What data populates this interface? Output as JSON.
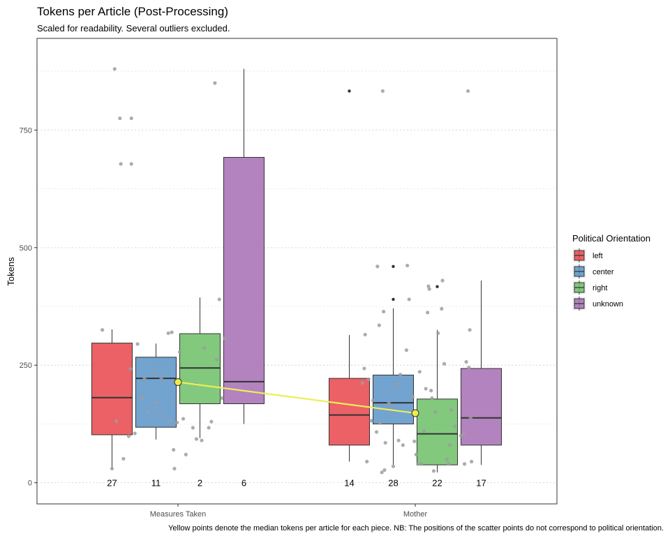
{
  "chart_data": {
    "type": "boxplot",
    "title": "Tokens per Article (Post-Processing)",
    "subtitle": "Scaled for readability. Several outliers excluded.",
    "caption": "Yellow points denote the median tokens per article for each piece. NB: The positions of the scatter points do not correspond to political orientation.",
    "ylabel": "Tokens",
    "xlabel": "",
    "ylim": [
      -45,
      945
    ],
    "yticks": [
      0,
      250,
      500,
      750
    ],
    "grid": true,
    "categories": [
      "Measures Taken",
      "Mother"
    ],
    "legend": {
      "title": "Political Orientation",
      "placement": "right",
      "entries": [
        "left",
        "center",
        "right",
        "unknown"
      ]
    },
    "colors": {
      "left": "#E8454B",
      "center": "#5B93C7",
      "right": "#6CBF66",
      "unknown": "#A46DB3",
      "median_line": "#EDED5A",
      "median_point": "#EDED4A",
      "points": "#9E9E9E"
    },
    "series": [
      {
        "name": "left",
        "boxes": [
          {
            "category": "Measures Taken",
            "whisker_low": 30,
            "q1": 102,
            "median": 181,
            "q3": 297,
            "whisker_high": 326,
            "outliers": [],
            "count": "27"
          },
          {
            "category": "Mother",
            "whisker_low": 45,
            "q1": 80,
            "median": 144,
            "q3": 222,
            "whisker_high": 314,
            "outliers": [
              833
            ],
            "count": "14"
          }
        ]
      },
      {
        "name": "center",
        "boxes": [
          {
            "category": "Measures Taken",
            "whisker_low": 92,
            "q1": 118,
            "median": 222,
            "q3": 267,
            "whisker_high": 296,
            "outliers": [],
            "count": "11"
          },
          {
            "category": "Mother",
            "whisker_low": 38,
            "q1": 125,
            "median": 170,
            "q3": 229,
            "whisker_high": 371,
            "outliers": [
              390,
              460
            ],
            "count": "28"
          }
        ]
      },
      {
        "name": "right",
        "boxes": [
          {
            "category": "Measures Taken",
            "whisker_low": 95,
            "q1": 168,
            "median": 244,
            "q3": 317,
            "whisker_high": 394,
            "outliers": [],
            "count": "2"
          },
          {
            "category": "Mother",
            "whisker_low": 22,
            "q1": 38,
            "median": 104,
            "q3": 178,
            "whisker_high": 325,
            "outliers": [
              417
            ],
            "count": "22"
          }
        ]
      },
      {
        "name": "unknown",
        "boxes": [
          {
            "category": "Measures Taken",
            "whisker_low": 125,
            "q1": 168,
            "median": 215,
            "q3": 692,
            "whisker_high": 880,
            "outliers": [],
            "count": "6"
          },
          {
            "category": "Mother",
            "whisker_low": 38,
            "q1": 80,
            "median": 138,
            "q3": 243,
            "whisker_high": 430,
            "outliers": [],
            "count": "17"
          }
        ]
      }
    ],
    "median_trend": [
      {
        "category": "Measures Taken",
        "value": 214
      },
      {
        "category": "Mother",
        "value": 148
      }
    ],
    "scatter_points": [
      {
        "category": "Measures Taken",
        "x_offset": -0.86,
        "y": 325
      },
      {
        "category": "Measures Taken",
        "x_offset": -0.75,
        "y": 30
      },
      {
        "category": "Measures Taken",
        "x_offset": -0.72,
        "y": 880
      },
      {
        "category": "Measures Taken",
        "x_offset": -0.66,
        "y": 775
      },
      {
        "category": "Measures Taken",
        "x_offset": -0.65,
        "y": 678
      },
      {
        "category": "Measures Taken",
        "x_offset": -0.62,
        "y": 51
      },
      {
        "category": "Measures Taken",
        "x_offset": -0.7,
        "y": 131
      },
      {
        "category": "Measures Taken",
        "x_offset": -0.56,
        "y": 99
      },
      {
        "category": "Measures Taken",
        "x_offset": -0.53,
        "y": 775
      },
      {
        "category": "Measures Taken",
        "x_offset": -0.53,
        "y": 678
      },
      {
        "category": "Measures Taken",
        "x_offset": -0.54,
        "y": 242
      },
      {
        "category": "Measures Taken",
        "x_offset": -0.49,
        "y": 105
      },
      {
        "category": "Measures Taken",
        "x_offset": -0.46,
        "y": 295
      },
      {
        "category": "Measures Taken",
        "x_offset": -0.41,
        "y": 180
      },
      {
        "category": "Measures Taken",
        "x_offset": -0.38,
        "y": 222
      },
      {
        "category": "Measures Taken",
        "x_offset": -0.33,
        "y": 152
      },
      {
        "category": "Measures Taken",
        "x_offset": -0.27,
        "y": 233
      },
      {
        "category": "Measures Taken",
        "x_offset": -0.24,
        "y": 170
      },
      {
        "category": "Measures Taken",
        "x_offset": -0.2,
        "y": 142
      },
      {
        "category": "Measures Taken",
        "x_offset": -0.19,
        "y": 222
      },
      {
        "category": "Measures Taken",
        "x_offset": -0.11,
        "y": 318
      },
      {
        "category": "Measures Taken",
        "x_offset": -0.08,
        "y": 132
      },
      {
        "category": "Measures Taken",
        "x_offset": -0.07,
        "y": 320
      },
      {
        "category": "Measures Taken",
        "x_offset": -0.05,
        "y": 70
      },
      {
        "category": "Measures Taken",
        "x_offset": -0.04,
        "y": 30
      },
      {
        "category": "Measures Taken",
        "x_offset": -0.01,
        "y": 128
      },
      {
        "category": "Measures Taken",
        "x_offset": 0.02,
        "y": 278
      },
      {
        "category": "Measures Taken",
        "x_offset": 0.06,
        "y": 136
      },
      {
        "category": "Measures Taken",
        "x_offset": 0.09,
        "y": 60
      },
      {
        "category": "Measures Taken",
        "x_offset": 0.17,
        "y": 117
      },
      {
        "category": "Measures Taken",
        "x_offset": 0.2,
        "y": 210
      },
      {
        "category": "Measures Taken",
        "x_offset": 0.21,
        "y": 93
      },
      {
        "category": "Measures Taken",
        "x_offset": 0.27,
        "y": 90
      },
      {
        "category": "Measures Taken",
        "x_offset": 0.3,
        "y": 287
      },
      {
        "category": "Measures Taken",
        "x_offset": 0.35,
        "y": 117
      },
      {
        "category": "Measures Taken",
        "x_offset": 0.38,
        "y": 130
      },
      {
        "category": "Measures Taken",
        "x_offset": 0.42,
        "y": 850
      },
      {
        "category": "Measures Taken",
        "x_offset": 0.44,
        "y": 262
      },
      {
        "category": "Measures Taken",
        "x_offset": 0.47,
        "y": 390
      },
      {
        "category": "Measures Taken",
        "x_offset": 0.5,
        "y": 180
      },
      {
        "category": "Measures Taken",
        "x_offset": 0.53,
        "y": 307
      },
      {
        "category": "Mother",
        "x_offset": -0.6,
        "y": 212
      },
      {
        "category": "Mother",
        "x_offset": -0.58,
        "y": 243
      },
      {
        "category": "Mother",
        "x_offset": -0.57,
        "y": 315
      },
      {
        "category": "Mother",
        "x_offset": -0.55,
        "y": 45
      },
      {
        "category": "Mother",
        "x_offset": -0.53,
        "y": 220
      },
      {
        "category": "Mother",
        "x_offset": -0.5,
        "y": 132
      },
      {
        "category": "Mother",
        "x_offset": -0.48,
        "y": 175
      },
      {
        "category": "Mother",
        "x_offset": -0.44,
        "y": 108
      },
      {
        "category": "Mother",
        "x_offset": -0.43,
        "y": 460
      },
      {
        "category": "Mother",
        "x_offset": -0.41,
        "y": 335
      },
      {
        "category": "Mother",
        "x_offset": -0.4,
        "y": 127
      },
      {
        "category": "Mother",
        "x_offset": -0.38,
        "y": 22
      },
      {
        "category": "Mother",
        "x_offset": -0.37,
        "y": 833
      },
      {
        "category": "Mother",
        "x_offset": -0.36,
        "y": 364
      },
      {
        "category": "Mother",
        "x_offset": -0.35,
        "y": 27
      },
      {
        "category": "Mother",
        "x_offset": -0.34,
        "y": 85
      },
      {
        "category": "Mother",
        "x_offset": -0.3,
        "y": 170
      },
      {
        "category": "Mother",
        "x_offset": -0.28,
        "y": 158
      },
      {
        "category": "Mother",
        "x_offset": -0.25,
        "y": 35
      },
      {
        "category": "Mother",
        "x_offset": -0.2,
        "y": 210
      },
      {
        "category": "Mother",
        "x_offset": -0.19,
        "y": 90
      },
      {
        "category": "Mother",
        "x_offset": -0.17,
        "y": 230
      },
      {
        "category": "Mother",
        "x_offset": -0.14,
        "y": 80
      },
      {
        "category": "Mother",
        "x_offset": -0.1,
        "y": 282
      },
      {
        "category": "Mother",
        "x_offset": -0.09,
        "y": 462
      },
      {
        "category": "Mother",
        "x_offset": -0.07,
        "y": 390
      },
      {
        "category": "Mother",
        "x_offset": -0.03,
        "y": 183
      },
      {
        "category": "Mother",
        "x_offset": -0.01,
        "y": 88
      },
      {
        "category": "Mother",
        "x_offset": 0.01,
        "y": 60
      },
      {
        "category": "Mother",
        "x_offset": 0.03,
        "y": 40
      },
      {
        "category": "Mother",
        "x_offset": 0.05,
        "y": 236
      },
      {
        "category": "Mother",
        "x_offset": 0.07,
        "y": 40
      },
      {
        "category": "Mother",
        "x_offset": 0.1,
        "y": 110
      },
      {
        "category": "Mother",
        "x_offset": 0.12,
        "y": 200
      },
      {
        "category": "Mother",
        "x_offset": 0.14,
        "y": 362
      },
      {
        "category": "Mother",
        "x_offset": 0.15,
        "y": 418
      },
      {
        "category": "Mother",
        "x_offset": 0.16,
        "y": 412
      },
      {
        "category": "Mother",
        "x_offset": 0.18,
        "y": 196
      },
      {
        "category": "Mother",
        "x_offset": 0.19,
        "y": 180
      },
      {
        "category": "Mother",
        "x_offset": 0.21,
        "y": 25
      },
      {
        "category": "Mother",
        "x_offset": 0.23,
        "y": 150
      },
      {
        "category": "Mother",
        "x_offset": 0.26,
        "y": 318
      },
      {
        "category": "Mother",
        "x_offset": 0.3,
        "y": 370
      },
      {
        "category": "Mother",
        "x_offset": 0.31,
        "y": 430
      },
      {
        "category": "Mother",
        "x_offset": 0.33,
        "y": 253
      },
      {
        "category": "Mother",
        "x_offset": 0.36,
        "y": 50
      },
      {
        "category": "Mother",
        "x_offset": 0.38,
        "y": 40
      },
      {
        "category": "Mother",
        "x_offset": 0.39,
        "y": 80
      },
      {
        "category": "Mother",
        "x_offset": 0.41,
        "y": 155
      },
      {
        "category": "Mother",
        "x_offset": 0.45,
        "y": 120
      },
      {
        "category": "Mother",
        "x_offset": 0.52,
        "y": 100
      },
      {
        "category": "Mother",
        "x_offset": 0.56,
        "y": 40
      },
      {
        "category": "Mother",
        "x_offset": 0.58,
        "y": 257
      },
      {
        "category": "Mother",
        "x_offset": 0.6,
        "y": 833
      },
      {
        "category": "Mother",
        "x_offset": 0.61,
        "y": 245
      },
      {
        "category": "Mother",
        "x_offset": 0.62,
        "y": 325
      },
      {
        "category": "Mother",
        "x_offset": 0.63,
        "y": 138
      },
      {
        "category": "Mother",
        "x_offset": 0.64,
        "y": 45
      },
      {
        "category": "Mother",
        "x_offset": 0.55,
        "y": 104
      }
    ]
  }
}
